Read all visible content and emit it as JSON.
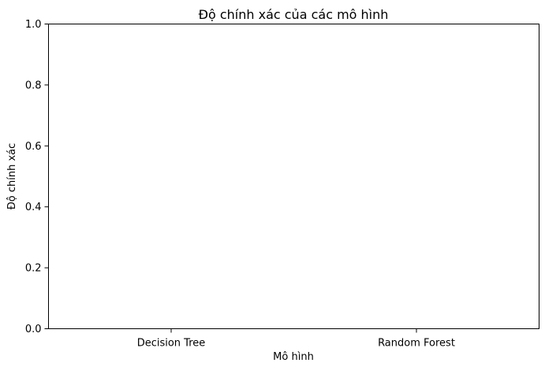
{
  "chart_data": {
    "type": "bar",
    "title": "Độ chính xác của các mô hình",
    "xlabel": "Mô hình",
    "ylabel": "Độ chính xác",
    "categories": [
      "Decision Tree",
      "Random Forest"
    ],
    "values": [
      0,
      0
    ],
    "ylim": [
      0,
      1
    ],
    "yticks": [
      "0.0",
      "0.2",
      "0.4",
      "0.6",
      "0.8",
      "1.0"
    ],
    "grid": false,
    "legend": "none",
    "colors": {
      "axis": "#000000",
      "background": "#ffffff"
    }
  }
}
